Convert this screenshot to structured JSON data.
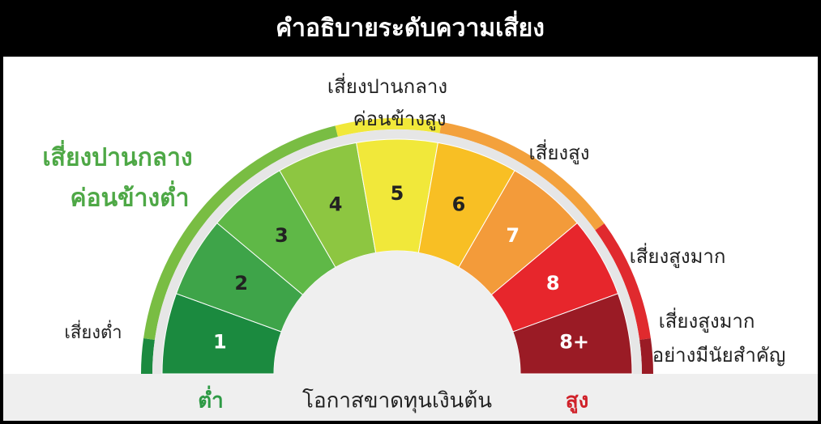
{
  "header": {
    "title": "คำอธิบายระดับความเสี่ยง"
  },
  "segments": [
    {
      "label": "1",
      "color": "#1b8a3f",
      "text_color": "#ffffff"
    },
    {
      "label": "2",
      "color": "#3ea449",
      "text_color": "#222222"
    },
    {
      "label": "3",
      "color": "#5fb847",
      "text_color": "#222222"
    },
    {
      "label": "4",
      "color": "#8dc641",
      "text_color": "#222222"
    },
    {
      "label": "5",
      "color": "#f1e83a",
      "text_color": "#222222"
    },
    {
      "label": "6",
      "color": "#f8bf24",
      "text_color": "#222222"
    },
    {
      "label": "7",
      "color": "#f39b3a",
      "text_color": "#ffffff"
    },
    {
      "label": "8",
      "color": "#e7262c",
      "text_color": "#ffffff"
    },
    {
      "label": "8+",
      "color": "#9a1b25",
      "text_color": "#ffffff"
    }
  ],
  "risk_levels": [
    {
      "lines": [
        "เสี่ยงต่ำ"
      ],
      "color": "#222222"
    },
    {
      "lines": [
        "เสี่ยงปานกลาง",
        "ค่อนข้างต่ำ"
      ],
      "color": "#4ea846"
    },
    {
      "lines": [
        "เสี่ยงปานกลาง",
        "ค่อนข้างสูง"
      ],
      "color": "#222222"
    },
    {
      "lines": [
        "เสี่ยงสูง"
      ],
      "color": "#222222"
    },
    {
      "lines": [
        "เสี่ยงสูงมาก"
      ],
      "color": "#222222"
    },
    {
      "lines": [
        "เสี่ยงสูงมาก",
        "อย่างมีนัยสำคัญ"
      ],
      "color": "#222222"
    }
  ],
  "axis": {
    "low": "ต่ำ",
    "caption": "โอกาสขาดทุนเงินต้น",
    "high": "สูง"
  }
}
